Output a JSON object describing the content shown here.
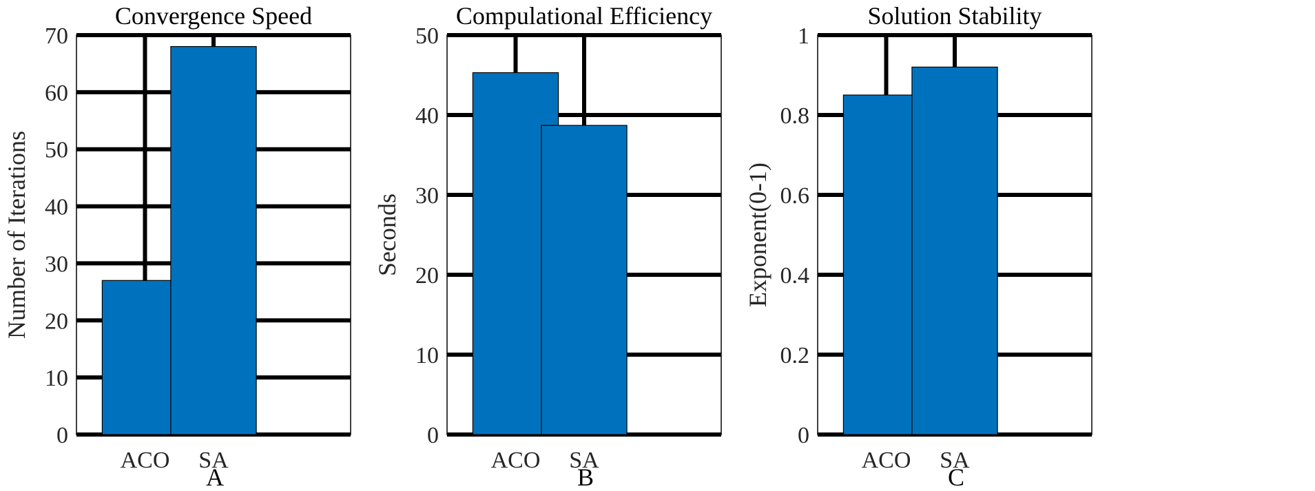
{
  "colors": {
    "bar": "#0072BD",
    "grid": "#000000",
    "axis": "#000000"
  },
  "chart_data": [
    {
      "type": "bar",
      "title": "Convergence Speed",
      "xlabel": "A",
      "ylabel": "Number of Iterations",
      "categories": [
        "ACO",
        "SA"
      ],
      "values": [
        27,
        68
      ],
      "ylim": [
        0,
        70
      ],
      "yticks": [
        0,
        10,
        20,
        30,
        40,
        50,
        60,
        70
      ],
      "ytick_labels": [
        "0",
        "10",
        "20",
        "30",
        "40",
        "50",
        "60",
        "70"
      ],
      "grid": true
    },
    {
      "type": "bar",
      "title": "Compulational Efficiency",
      "xlabel": "B",
      "ylabel": "Seconds",
      "categories": [
        "ACO",
        "SA"
      ],
      "values": [
        45.3,
        38.7
      ],
      "ylim": [
        0,
        50
      ],
      "yticks": [
        0,
        10,
        20,
        30,
        40,
        50
      ],
      "ytick_labels": [
        "0",
        "10",
        "20",
        "30",
        "40",
        "50"
      ],
      "grid": true
    },
    {
      "type": "bar",
      "title": "Solution Stability",
      "xlabel": "C",
      "ylabel": "Exponent(0-1)",
      "categories": [
        "ACO",
        "SA"
      ],
      "values": [
        0.85,
        0.92
      ],
      "ylim": [
        0,
        1
      ],
      "yticks": [
        0,
        0.2,
        0.4,
        0.6,
        0.8,
        1
      ],
      "ytick_labels": [
        "0",
        "0.2",
        "0.4",
        "0.6",
        "0.8",
        "1"
      ],
      "grid": true
    }
  ]
}
